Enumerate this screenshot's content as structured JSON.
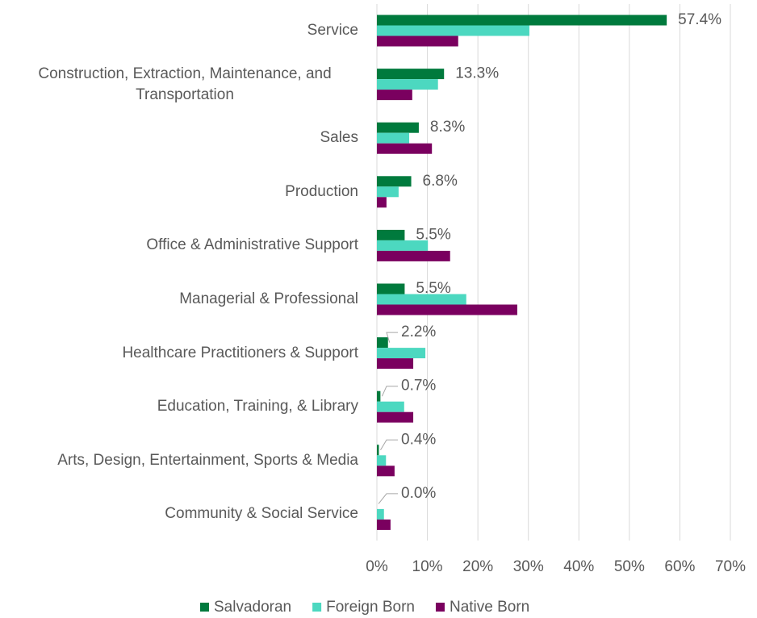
{
  "chart_data": {
    "type": "bar",
    "orientation": "horizontal",
    "categories": [
      "Service",
      "Construction, Extraction, Maintenance, and Transportation",
      "Sales",
      "Production",
      "Office & Administrative Support",
      "Managerial & Professional",
      "Healthcare Practitioners & Support",
      "Education, Training, & Library",
      "Arts, Design, Entertainment, Sports & Media",
      "Community & Social Service"
    ],
    "series": [
      {
        "name": "Salvadoran",
        "color": "#007a3d",
        "values": [
          57.4,
          13.3,
          8.3,
          6.8,
          5.5,
          5.5,
          2.2,
          0.7,
          0.4,
          0.0
        ],
        "value_labels": [
          "57.4%",
          "13.3%",
          "8.3%",
          "6.8%",
          "5.5%",
          "5.5%",
          "2.2%",
          "0.7%",
          "0.4%",
          "0.0%"
        ]
      },
      {
        "name": "Foreign Born",
        "color": "#4cd8c0",
        "values": [
          30.2,
          12.1,
          6.4,
          4.3,
          10.1,
          17.7,
          9.6,
          5.4,
          1.8,
          1.4
        ]
      },
      {
        "name": "Native Born",
        "color": "#7a005f",
        "values": [
          16.1,
          7.0,
          10.9,
          1.9,
          14.5,
          27.8,
          7.2,
          7.2,
          3.5,
          2.7
        ]
      }
    ],
    "xlim": [
      0,
      70
    ],
    "xticks": [
      {
        "value": 0,
        "label": "0%"
      },
      {
        "value": 10,
        "label": "10%"
      },
      {
        "value": 20,
        "label": "20%"
      },
      {
        "value": 30,
        "label": "30%"
      },
      {
        "value": 40,
        "label": "40%"
      },
      {
        "value": 50,
        "label": "50%"
      },
      {
        "value": 60,
        "label": "60%"
      },
      {
        "value": 70,
        "label": "70%"
      }
    ],
    "grid": true,
    "legend": "bottom"
  }
}
